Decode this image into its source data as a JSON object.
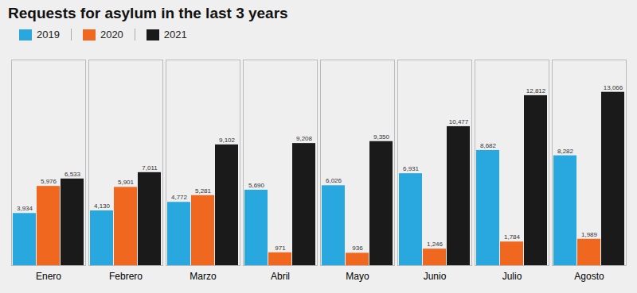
{
  "chart_data": {
    "type": "bar",
    "title": "Requests for asylum in the last 3 years",
    "categories": [
      "Enero",
      "Febrero",
      "Marzo",
      "Abril",
      "Mayo",
      "Junio",
      "Julio",
      "Agosto"
    ],
    "series": [
      {
        "name": "2019",
        "color": "#29a8e0",
        "values": [
          3934,
          4130,
          4772,
          5690,
          6026,
          6931,
          8682,
          8282
        ],
        "value_labels": [
          "3,934",
          "4,130",
          "4,772",
          "5,690",
          "6,026",
          "6,931",
          "8,682",
          "8,282"
        ]
      },
      {
        "name": "2020",
        "color": "#f06820",
        "values": [
          5976,
          5901,
          5281,
          971,
          936,
          1246,
          1784,
          1989
        ],
        "value_labels": [
          "5,976",
          "5,901",
          "5,281",
          "971",
          "936",
          "1,246",
          "1,784",
          "1,989"
        ]
      },
      {
        "name": "2021",
        "color": "#1a1a1a",
        "values": [
          6533,
          7011,
          9102,
          9208,
          9350,
          10477,
          12812,
          13066
        ],
        "value_labels": [
          "6,533",
          "7,011",
          "9,102",
          "9,208",
          "9,350",
          "10,477",
          "12,812",
          "13,066"
        ]
      }
    ],
    "ylim": [
      0,
      15500
    ],
    "tick_labels": "x",
    "data_labels": true,
    "legend": "upper left",
    "grid": false
  }
}
